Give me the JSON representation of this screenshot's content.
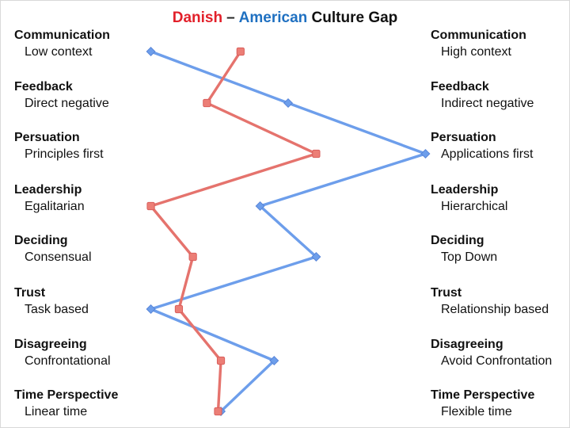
{
  "title": {
    "danish": "Danish",
    "separator": "–",
    "american": "American",
    "suffix": "Culture Gap"
  },
  "colors": {
    "danish_title": "#e2202a",
    "american_title": "#1f70c1",
    "danish_line": "#e5736d",
    "danish_marker_fill": "#ec7e76",
    "danish_marker_stroke": "#d95f5c",
    "american_line": "#6d9eeb",
    "american_marker_fill": "#6d9eeb",
    "american_marker_stroke": "#5885d8",
    "text": "#111111",
    "background": "#ffffff"
  },
  "chart_data": {
    "type": "line",
    "title": "Danish – American Culture Gap",
    "orientation": "vertical categories, horizontal value scale",
    "xlim": [
      0,
      100
    ],
    "grid": false,
    "legend_position": "in-title (Danish=red, American=blue)",
    "categories": [
      {
        "dimension": "Communication",
        "left_label": "Low context",
        "right_label": "High context"
      },
      {
        "dimension": "Feedback",
        "left_label": "Direct negative",
        "right_label": "Indirect negative"
      },
      {
        "dimension": "Persuation",
        "left_label": "Principles first",
        "right_label": "Applications first"
      },
      {
        "dimension": "Leadership",
        "left_label": "Egalitarian",
        "right_label": "Hierarchical"
      },
      {
        "dimension": "Deciding",
        "left_label": "Consensual",
        "right_label": "Top Down"
      },
      {
        "dimension": "Trust",
        "left_label": "Task based",
        "right_label": "Relationship based"
      },
      {
        "dimension": "Disagreeing",
        "left_label": "Confrontational",
        "right_label": "Avoid Confrontation"
      },
      {
        "dimension": "Time Perspective",
        "left_label": "Linear time",
        "right_label": "Flexible time"
      }
    ],
    "series": [
      {
        "name": "Danish",
        "marker": "square",
        "color": "#e5736d",
        "values": [
          33,
          21,
          60,
          1,
          16,
          11,
          26,
          25
        ]
      },
      {
        "name": "American",
        "marker": "diamond",
        "color": "#6d9eeb",
        "values": [
          1,
          50,
          99,
          40,
          60,
          1,
          45,
          26
        ]
      }
    ]
  }
}
